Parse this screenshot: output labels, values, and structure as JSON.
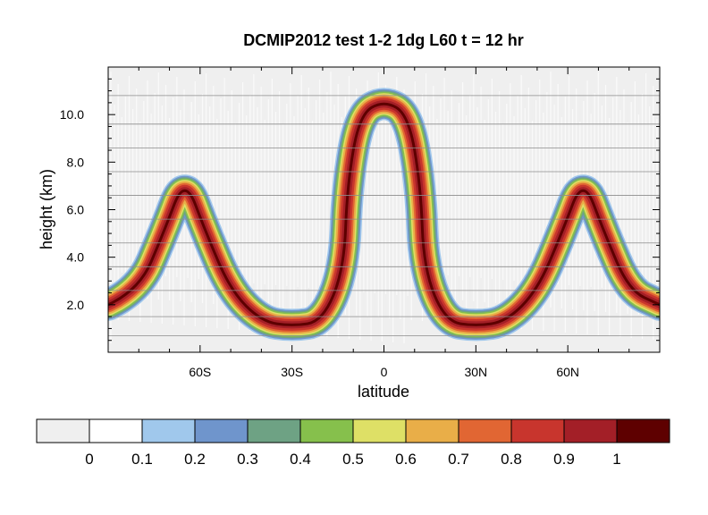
{
  "chart_data": {
    "type": "heatmap",
    "title": "DCMIP2012   test 1-2   1dg   L60   t = 12 hr",
    "xlabel": "latitude",
    "ylabel": "height (km)",
    "xlim": [
      -90,
      90
    ],
    "ylim": [
      0,
      12
    ],
    "x_ticks": [
      {
        "value": -60,
        "label": "60S"
      },
      {
        "value": -30,
        "label": "30S"
      },
      {
        "value": 0,
        "label": "0"
      },
      {
        "value": 30,
        "label": "30N"
      },
      {
        "value": 60,
        "label": "60N"
      }
    ],
    "y_ticks": [
      {
        "value": 2,
        "label": "2.0"
      },
      {
        "value": 4,
        "label": "4.0"
      },
      {
        "value": 6,
        "label": "6.0"
      },
      {
        "value": 8,
        "label": "8.0"
      },
      {
        "value": 10,
        "label": "10.0"
      }
    ],
    "model_levels_km": [
      0.7,
      1.5,
      2.6,
      3.6,
      4.6,
      5.6,
      6.6,
      7.6,
      8.6,
      9.6,
      10.8
    ],
    "tracer_band": {
      "description_points_lat_height_center": [
        [
          -90,
          2.0
        ],
        [
          -80,
          2.6
        ],
        [
          -72,
          5.0
        ],
        [
          -65,
          7.4
        ],
        [
          -58,
          5.0
        ],
        [
          -50,
          2.6
        ],
        [
          -40,
          1.3
        ],
        [
          -30,
          1.1
        ],
        [
          -20,
          1.3
        ],
        [
          -13,
          3.5
        ],
        [
          -12,
          7.0
        ],
        [
          -8,
          10.0
        ],
        [
          0,
          10.6
        ],
        [
          8,
          10.0
        ],
        [
          12,
          7.0
        ],
        [
          13,
          3.5
        ],
        [
          20,
          1.3
        ],
        [
          30,
          1.1
        ],
        [
          40,
          1.3
        ],
        [
          50,
          2.6
        ],
        [
          58,
          5.0
        ],
        [
          65,
          7.4
        ],
        [
          72,
          5.0
        ],
        [
          80,
          2.6
        ],
        [
          90,
          2.0
        ]
      ],
      "peak_value": 1.0,
      "background_value": 0.0
    },
    "colorbar": {
      "levels": [
        "0",
        "0.1",
        "0.2",
        "0.3",
        "0.4",
        "0.5",
        "0.6",
        "0.7",
        "0.8",
        "0.9",
        "1"
      ],
      "colors": [
        "#efefef",
        "#ffffff",
        "#a0c8ec",
        "#6f95cc",
        "#6ea284",
        "#86c04c",
        "#dee066",
        "#e9ae48",
        "#e16633",
        "#c8352d",
        "#a31f27",
        "#5e0000"
      ]
    },
    "grid": false
  }
}
